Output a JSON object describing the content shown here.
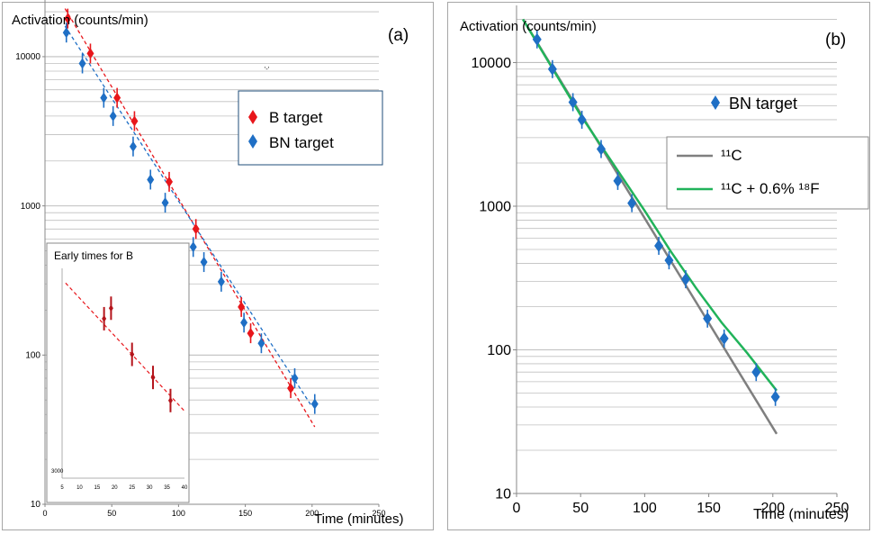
{
  "colors": {
    "red": "#e8161b",
    "blue": "#1f6fc5",
    "darkred": "#b4141b",
    "gray": "#7f7f7f",
    "green": "#21b35a",
    "grid": "#bfbfbf"
  },
  "chart_data": [
    {
      "panel": "(a)",
      "type": "scatter",
      "scale": "log-y",
      "ylabel": "Activation (counts/min)",
      "xlabel": "Time (minutes)",
      "xlim": [
        0,
        250
      ],
      "ylim": [
        10,
        25000
      ],
      "x_ticks": [
        "0",
        "50",
        "100",
        "150",
        "200",
        "250"
      ],
      "y_ticks": [
        "10",
        "100",
        "1000",
        "10000"
      ],
      "grid": "horizontal",
      "legend_position": "top-right",
      "series": [
        {
          "name": "B target",
          "color": "#e8161b",
          "marker": "diamond",
          "points": [
            [
              17,
              18000
            ],
            [
              34,
              10500
            ],
            [
              54,
              5300
            ],
            [
              67,
              3700
            ],
            [
              93,
              1450
            ],
            [
              113,
              700
            ],
            [
              147,
              210
            ],
            [
              154,
              140
            ],
            [
              184,
              60
            ]
          ]
        },
        {
          "name": "BN target",
          "color": "#1f6fc5",
          "marker": "diamond",
          "points": [
            [
              16,
              14500
            ],
            [
              28,
              9000
            ],
            [
              44,
              5300
            ],
            [
              51,
              4000
            ],
            [
              66,
              2500
            ],
            [
              79,
              1500
            ],
            [
              90,
              1050
            ],
            [
              111,
              530
            ],
            [
              119,
              420
            ],
            [
              132,
              310
            ],
            [
              149,
              165
            ],
            [
              162,
              120
            ],
            [
              187,
              70
            ],
            [
              202,
              47
            ]
          ]
        }
      ],
      "fits": [
        {
          "series": "B target",
          "style": "dashed",
          "color": "#e8161b",
          "x": [
            15,
            202
          ],
          "y": [
            21000,
            33
          ]
        },
        {
          "series": "BN target",
          "style": "dashed",
          "color": "#1f6fc5",
          "x": [
            15,
            200
          ],
          "y": [
            16000,
            45
          ]
        }
      ],
      "inset": {
        "title": "Early times for B",
        "xlim": [
          5,
          40
        ],
        "x_ticks": [
          "5",
          "10",
          "15",
          "20",
          "25",
          "30",
          "35",
          "40"
        ],
        "y_tick_label": "3000",
        "points": [
          [
            17,
            0.24
          ],
          [
            19,
            0.19
          ],
          [
            25,
            0.41
          ],
          [
            31,
            0.52
          ],
          [
            36,
            0.63
          ]
        ],
        "fit": [
          [
            6,
            0.07
          ],
          [
            40,
            0.68
          ]
        ]
      }
    },
    {
      "panel": "(b)",
      "type": "scatter",
      "scale": "log-y",
      "ylabel": "Activation (counts/min)",
      "xlabel": "Time (minutes)",
      "xlim": [
        0,
        250
      ],
      "ylim": [
        10,
        25000
      ],
      "x_ticks": [
        "0",
        "50",
        "100",
        "150",
        "200",
        "250"
      ],
      "y_ticks": [
        "10",
        "100",
        "1000",
        "10000"
      ],
      "grid": "horizontal",
      "legend_position": "top-right",
      "series": [
        {
          "name": "BN target",
          "color": "#1f6fc5",
          "marker": "diamond",
          "points": [
            [
              16,
              14500
            ],
            [
              28,
              9000
            ],
            [
              44,
              5300
            ],
            [
              51,
              4000
            ],
            [
              66,
              2500
            ],
            [
              79,
              1500
            ],
            [
              90,
              1050
            ],
            [
              111,
              530
            ],
            [
              119,
              420
            ],
            [
              132,
              310
            ],
            [
              149,
              165
            ],
            [
              162,
              120
            ],
            [
              187,
              70
            ],
            [
              202,
              47
            ]
          ]
        }
      ],
      "curves": [
        {
          "name": "¹¹C",
          "color": "#7f7f7f",
          "points": [
            [
              5,
              20000
            ],
            [
              203,
              26
            ]
          ]
        },
        {
          "name": "¹¹C + 0.6% ¹⁸F",
          "color": "#21b35a",
          "points": [
            [
              5,
              20000
            ],
            [
              50,
              4300
            ],
            [
              100,
              930
            ],
            [
              120,
              490
            ],
            [
              140,
              270
            ],
            [
              160,
              155
            ],
            [
              180,
              95
            ],
            [
              203,
              52
            ]
          ]
        }
      ]
    }
  ],
  "labels": {
    "a": {
      "panel_label": "(a)",
      "ylabel": "Activation (counts/min)",
      "xlabel": "Time (minutes)",
      "legend_b": "B target",
      "legend_bn": "BN target",
      "inset_title": "Early times for B",
      "inset_ytick": "3000",
      "stray_mark": "'-'"
    },
    "b": {
      "panel_label": "(b)",
      "ylabel": "Activation (counts/min)",
      "xlabel": "Time (minutes)",
      "legend_bn": "BN target",
      "curve_c": "¹¹C",
      "curve_cf": "¹¹C + 0.6% ¹⁸F"
    }
  }
}
